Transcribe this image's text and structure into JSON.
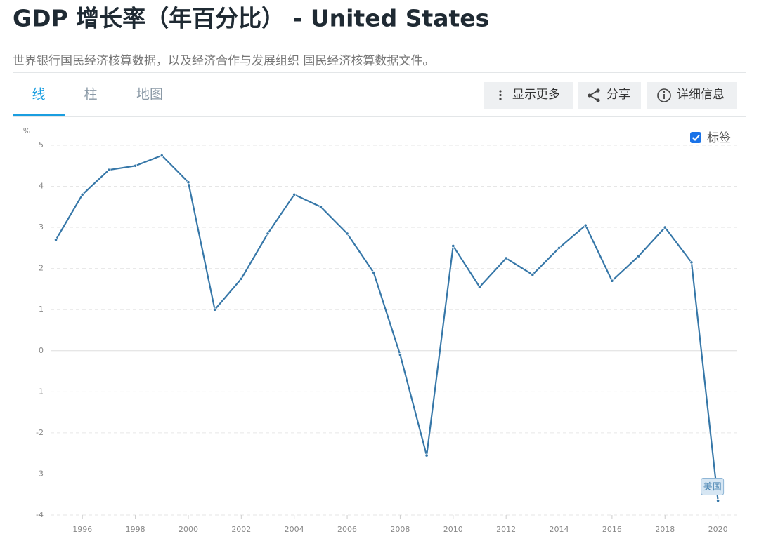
{
  "header": {
    "title": "GDP 增长率（年百分比） - United States",
    "subtitle": "世界银行国民经济核算数据，以及经济合作与发展组织 国民经济核算数据文件。"
  },
  "tabs": [
    "线",
    "柱",
    "地图"
  ],
  "buttons": [
    "显示更多",
    "分享",
    "详细信息"
  ],
  "label_toggle": "标签",
  "chart_data": {
    "type": "line",
    "ylabel": "%",
    "x": [
      1995,
      1996,
      1997,
      1998,
      1999,
      2000,
      2001,
      2002,
      2003,
      2004,
      2005,
      2006,
      2007,
      2008,
      2009,
      2010,
      2011,
      2012,
      2013,
      2014,
      2015,
      2016,
      2017,
      2018,
      2019,
      2020
    ],
    "series": [
      {
        "name": "美国",
        "color": "#3677a8",
        "values": [
          2.7,
          3.8,
          4.4,
          4.5,
          4.75,
          4.1,
          1.0,
          1.75,
          2.85,
          3.8,
          3.5,
          2.85,
          1.9,
          -0.1,
          -2.55,
          2.55,
          1.55,
          2.25,
          1.85,
          2.5,
          3.05,
          1.7,
          2.3,
          3.0,
          2.15,
          -3.65
        ]
      }
    ],
    "xlim": [
      1994.8,
      2020.7
    ],
    "xticks": [
      1996,
      1998,
      2000,
      2002,
      2004,
      2006,
      2008,
      2010,
      2012,
      2014,
      2016,
      2018,
      2020
    ],
    "ylim": [
      -4,
      5
    ],
    "yticks": [
      -4,
      -3,
      -2,
      -1,
      0,
      1,
      2,
      3,
      4,
      5
    ],
    "grid": true
  }
}
